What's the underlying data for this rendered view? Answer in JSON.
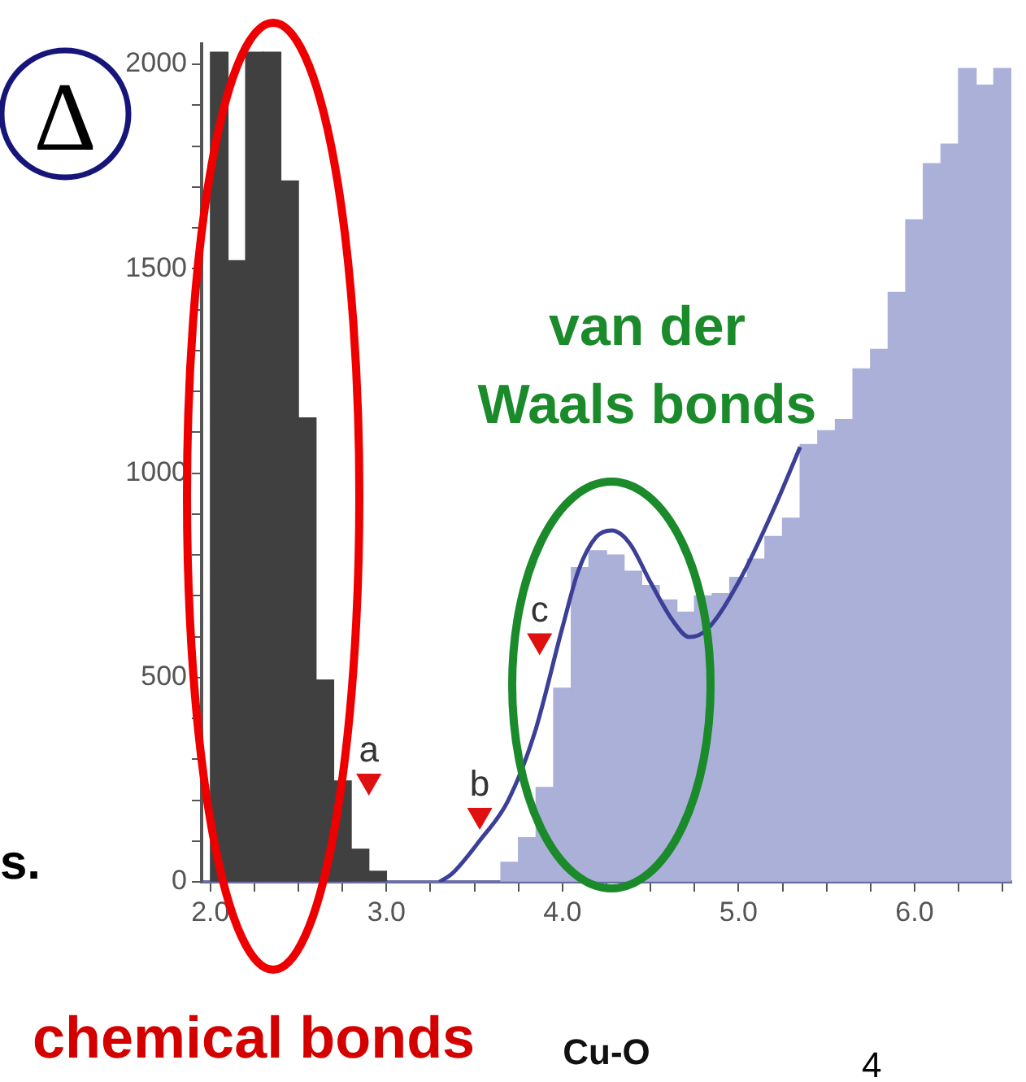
{
  "chart_data": {
    "type": "histogram",
    "xlabel": "Cu-O",
    "xlim": [
      1.95,
      6.55
    ],
    "ylim": [
      0,
      2050
    ],
    "xticks": [
      {
        "value": 2,
        "label": "2.0"
      },
      {
        "value": 2.25,
        "label": null
      },
      {
        "value": 2.5,
        "label": null
      },
      {
        "value": 2.75,
        "label": null
      },
      {
        "value": 3,
        "label": "3.0"
      },
      {
        "value": 3.25,
        "label": null
      },
      {
        "value": 3.5,
        "label": null
      },
      {
        "value": 3.75,
        "label": null
      },
      {
        "value": 4,
        "label": "4.0"
      },
      {
        "value": 4.25,
        "label": null
      },
      {
        "value": 4.5,
        "label": null
      },
      {
        "value": 4.75,
        "label": null
      },
      {
        "value": 5,
        "label": "5.0"
      },
      {
        "value": 5.25,
        "label": null
      },
      {
        "value": 5.5,
        "label": null
      },
      {
        "value": 5.75,
        "label": null
      },
      {
        "value": 6,
        "label": "6.0"
      },
      {
        "value": 6.25,
        "label": null
      },
      {
        "value": 6.5,
        "label": null
      }
    ],
    "yticks": [
      0,
      {
        "value": 100,
        "label": null
      },
      {
        "value": 200,
        "label": null
      },
      {
        "value": 300,
        "label": null
      },
      {
        "value": 400,
        "label": null
      },
      500,
      {
        "value": 600,
        "label": null
      },
      {
        "value": 700,
        "label": null
      },
      {
        "value": 800,
        "label": null
      },
      {
        "value": 900,
        "label": null
      },
      1000,
      {
        "value": 1100,
        "label": null
      },
      {
        "value": 1200,
        "label": null
      },
      {
        "value": 1300,
        "label": null
      },
      {
        "value": 1400,
        "label": null
      },
      1500,
      {
        "value": 1600,
        "label": null
      },
      {
        "value": 1700,
        "label": null
      },
      {
        "value": 1800,
        "label": null
      },
      {
        "value": 1900,
        "label": null
      },
      2000
    ],
    "grid": false,
    "legend": false,
    "series": [
      {
        "type": "histogram",
        "color": "#404040",
        "bins": [
          2.0,
          2.1,
          2.2,
          2.3,
          2.4,
          2.5,
          2.6,
          2.7,
          2.8,
          2.9,
          3.0
        ],
        "values": [
          2030,
          1520,
          2030,
          2030,
          1715,
          1135,
          494,
          247,
          80,
          26
        ]
      },
      {
        "type": "histogram",
        "color": "#aab0d8",
        "bins": [
          3.65,
          3.75,
          3.85,
          3.95,
          4.05,
          4.15,
          4.25,
          4.35,
          4.45,
          4.55,
          4.65,
          4.75,
          4.85,
          4.95,
          5.05,
          5.15,
          5.25,
          5.35,
          5.45,
          5.55,
          5.65,
          5.75,
          5.85,
          5.95,
          6.05,
          6.15,
          6.25,
          6.35,
          6.45,
          6.55
        ],
        "values": [
          48,
          108,
          231,
          474,
          769,
          810,
          800,
          760,
          725,
          690,
          660,
          700,
          705,
          745,
          790,
          845,
          890,
          1070,
          1104,
          1131,
          1255,
          1303,
          1442,
          1620,
          1757,
          1805,
          1990,
          1949,
          1990
        ]
      },
      {
        "type": "line",
        "color": "#3b3f96",
        "marker": "none",
        "line_style": "solid",
        "x": [
          3.3,
          3.37,
          3.53,
          3.69,
          3.84,
          4.0,
          4.09,
          4.19,
          4.28,
          4.38,
          4.5,
          4.63,
          4.72,
          4.82,
          5.01,
          5.2,
          5.35
        ],
        "values": [
          0,
          19,
          101,
          198,
          362,
          623,
          761,
          843,
          860,
          829,
          733,
          637,
          599,
          617,
          741,
          912,
          1064
        ]
      },
      {
        "type": "scatter",
        "color": "#e01010",
        "marker": "triangle",
        "x": [
          2.9,
          3.53,
          3.87
        ],
        "values": [
          247,
          163,
          590
        ]
      }
    ],
    "annotations": [
      "van der Waals bonds",
      "chemical bonds",
      "Δ",
      "s.",
      "4",
      {
        "text": "a",
        "x": 2.9,
        "y": 247
      },
      {
        "text": "b",
        "x": 3.53,
        "y": 163
      },
      {
        "text": "c",
        "x": 3.87,
        "y": 590
      }
    ]
  }
}
